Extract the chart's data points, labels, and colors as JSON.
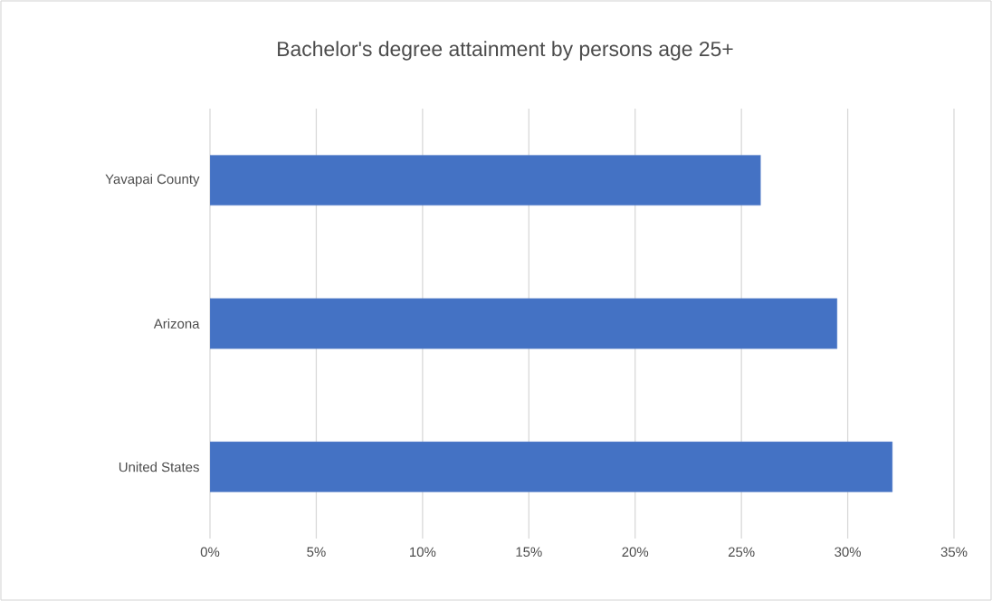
{
  "chart_data": {
    "type": "bar",
    "orientation": "horizontal",
    "title": "Bachelor's degree attainment by persons age 25+",
    "categories": [
      "Yavapai County",
      "Arizona",
      "United States"
    ],
    "values": [
      25.9,
      29.5,
      32.1
    ],
    "color": "#4472c4",
    "xlim": [
      0,
      35
    ],
    "xticks": [
      {
        "value": 0,
        "label": "0%"
      },
      {
        "value": 5,
        "label": "5%"
      },
      {
        "value": 10,
        "label": "10%"
      },
      {
        "value": 15,
        "label": "15%"
      },
      {
        "value": 20,
        "label": "20%"
      },
      {
        "value": 25,
        "label": "25%"
      },
      {
        "value": 30,
        "label": "30%"
      },
      {
        "value": 35,
        "label": "35%"
      }
    ],
    "grid": "x"
  }
}
